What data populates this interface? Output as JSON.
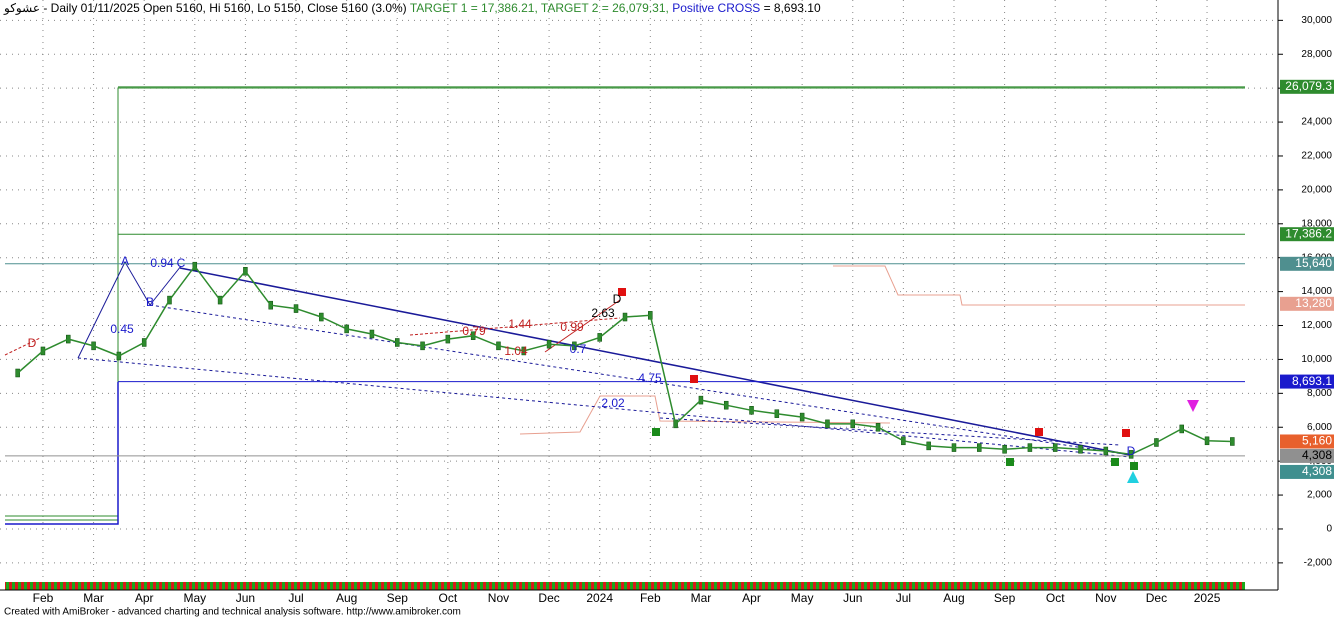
{
  "chart_data": {
    "type": "line",
    "header": {
      "ticker": "عشوكو",
      "info": "- Daily 01/11/2025 Open 5160, Hi 5160, Lo 5150, Close 5160 (3.0%)",
      "targets": "TARGET 1 = 17,386.21, TARGET 2 = 26,079.31,",
      "cross_name": "Positive CROSS",
      "cross_value": "= 8,693.10"
    },
    "footer": "Created with AmiBroker - advanced charting and technical analysis software. http://www.amibroker.com",
    "categories": [
      null,
      "Feb",
      null,
      "Mar",
      null,
      "Apr",
      null,
      "May",
      null,
      "Jun",
      null,
      "Jul",
      null,
      "Aug",
      null,
      "Sep",
      null,
      "Oct",
      null,
      "Nov",
      null,
      "Dec",
      null,
      "2024",
      null,
      "Feb",
      null,
      "Mar",
      null,
      "Apr",
      null,
      "May",
      null,
      "Jun",
      null,
      "Jul",
      null,
      "Aug",
      null,
      "Sep",
      null,
      "Oct",
      null,
      "Nov",
      null,
      "Dec",
      null,
      "2025",
      null
    ],
    "series": [
      {
        "name": "Close",
        "color": "#2e8b2e",
        "values": [
          9200,
          10500,
          11200,
          10800,
          10200,
          11000,
          13500,
          15500,
          13500,
          15200,
          13200,
          13000,
          12500,
          11800,
          11500,
          11000,
          10800,
          11200,
          11400,
          10800,
          10500,
          10900,
          10800,
          11300,
          12500,
          12600,
          6200,
          7600,
          7300,
          7000,
          6800,
          6600,
          6200,
          6200,
          6000,
          5200,
          4900,
          4800,
          4800,
          4700,
          4800,
          4800,
          4700,
          4600,
          4400,
          5100,
          5900,
          5200,
          5160
        ]
      }
    ],
    "levels": [
      {
        "value": 26079.3,
        "label": "26,079.3",
        "color": "#2e8b2e"
      },
      {
        "value": 17386.2,
        "label": "17,386.2",
        "color": "#2e8b2e"
      },
      {
        "value": 15640,
        "label": "15,640",
        "color": "#4f8f8f"
      },
      {
        "value": 13280,
        "label": "13,280",
        "color": "#e8a090"
      },
      {
        "value": 8693.1,
        "label": "8,693.1",
        "color": "#1a1acc"
      },
      {
        "value": 5160,
        "label": "5,160",
        "color": "#e8602c"
      },
      {
        "value": 4308,
        "label": "4,308",
        "color": "#909090"
      },
      {
        "value": 4308,
        "label": "4,308",
        "color": "#3f8f8f"
      }
    ],
    "annotations": [
      "A",
      "0.94",
      "C",
      "B",
      "0.45",
      "D",
      "0.79",
      "1.44",
      "0.99",
      "1.04",
      "0.7",
      "2.63",
      "D",
      "4.75",
      "2.02",
      "D"
    ],
    "ylim": [
      -3600,
      31200
    ],
    "yticks": [
      {
        "value": -2000,
        "label": "-2,000"
      },
      0,
      {
        "value": 2000,
        "label": "2,000"
      },
      {
        "value": 4000,
        "label": "4,000"
      },
      {
        "value": 6000,
        "label": "6,000"
      },
      {
        "value": 8000,
        "label": "8,000"
      },
      {
        "value": 10000,
        "label": "10,000"
      },
      {
        "value": 12000,
        "label": "12,000"
      },
      {
        "value": 14000,
        "label": "14,000"
      },
      {
        "value": 16000,
        "label": "16,000"
      },
      {
        "value": 18000,
        "label": "18,000"
      },
      {
        "value": 20000,
        "label": "20,000"
      },
      {
        "value": 22000,
        "label": "22,000"
      },
      {
        "value": 24000,
        "label": "24,000"
      },
      {
        "value": 26000,
        "label": "26,000"
      },
      {
        "value": 28000,
        "label": "28,000"
      },
      {
        "value": 30000,
        "label": "30,000"
      }
    ],
    "grid": true
  }
}
